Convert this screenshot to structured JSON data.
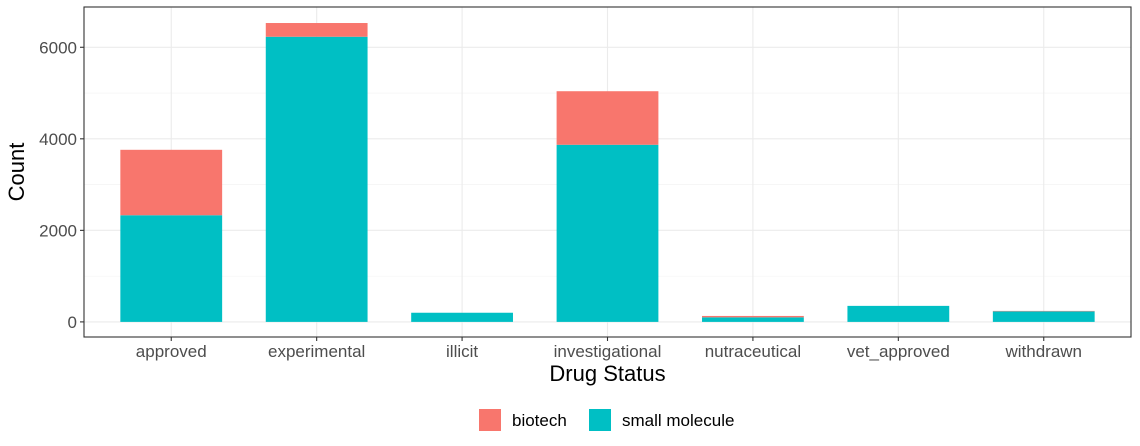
{
  "chart_data": {
    "type": "bar",
    "stacked": true,
    "categories": [
      "approved",
      "experimental",
      "illicit",
      "investigational",
      "nutraceutical",
      "vet_approved",
      "withdrawn"
    ],
    "series": [
      {
        "name": "small molecule",
        "values": [
          2330,
          6230,
          200,
          3870,
          100,
          350,
          230
        ],
        "color": "#00BFC4"
      },
      {
        "name": "biotech",
        "values": [
          1430,
          300,
          0,
          1170,
          30,
          0,
          10
        ],
        "color": "#F8766D"
      }
    ],
    "xlabel": "Drug Status",
    "ylabel": "Count",
    "ylim": [
      -330,
      6880
    ],
    "yticks": [
      0,
      2000,
      4000,
      6000
    ],
    "grid": true,
    "legend_position": "bottom",
    "legend": [
      {
        "label": "biotech",
        "color": "#F8766D"
      },
      {
        "label": "small molecule",
        "color": "#00BFC4"
      }
    ]
  }
}
